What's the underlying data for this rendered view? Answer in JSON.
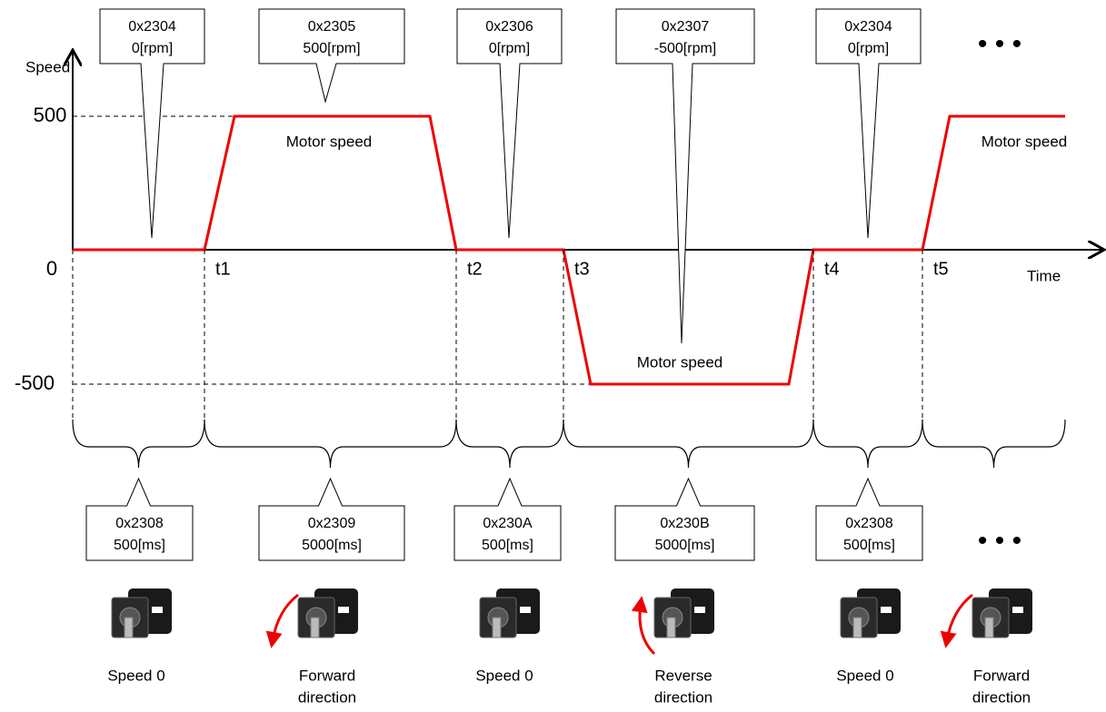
{
  "axis": {
    "y_label": "Speed",
    "x_label": "Time",
    "y_ticks": [
      "500",
      "0",
      "-500"
    ],
    "time_marks": [
      "t1",
      "t2",
      "t3",
      "t4",
      "t5"
    ]
  },
  "motor_speed_labels": [
    "Motor speed",
    "Motor speed",
    "Motor speed"
  ],
  "top_callouts": [
    {
      "address": "0x2304",
      "value": "0[rpm]"
    },
    {
      "address": "0x2305",
      "value": "500[rpm]"
    },
    {
      "address": "0x2306",
      "value": "0[rpm]"
    },
    {
      "address": "0x2307",
      "value": "-500[rpm]"
    },
    {
      "address": "0x2304",
      "value": "0[rpm]"
    }
  ],
  "bottom_callouts": [
    {
      "address": "0x2308",
      "value": "500[ms]"
    },
    {
      "address": "0x2309",
      "value": "5000[ms]"
    },
    {
      "address": "0x230A",
      "value": "500[ms]"
    },
    {
      "address": "0x230B",
      "value": "5000[ms]"
    },
    {
      "address": "0x2308",
      "value": "500[ms]"
    }
  ],
  "motors": [
    {
      "label": [
        "Speed 0"
      ]
    },
    {
      "label": [
        "Forward",
        "direction"
      ]
    },
    {
      "label": [
        "Speed 0"
      ]
    },
    {
      "label": [
        "Reverse",
        "direction"
      ]
    },
    {
      "label": [
        "Speed 0"
      ]
    },
    {
      "label": [
        "Forward",
        "direction"
      ]
    }
  ]
}
